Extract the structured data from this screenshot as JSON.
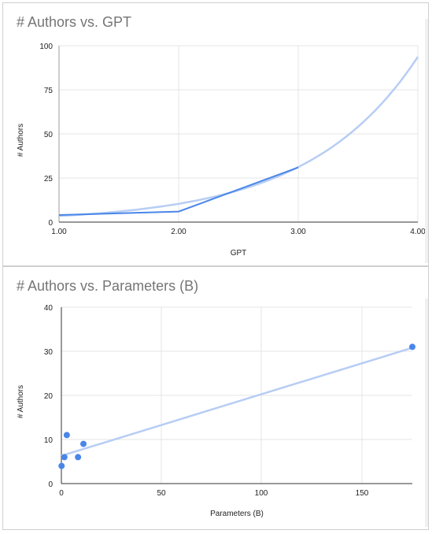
{
  "chart_data": [
    {
      "type": "line",
      "title": "# Authors vs. GPT",
      "xlabel": "GPT",
      "ylabel": "# Authors",
      "xlim": [
        1,
        4
      ],
      "ylim": [
        0,
        100
      ],
      "x_ticks": [
        "1.00",
        "2.00",
        "3.00",
        "4.00"
      ],
      "y_ticks": [
        "0",
        "25",
        "50",
        "75",
        "100"
      ],
      "grid": true,
      "legend": "none",
      "series": [
        {
          "x": [
            1,
            2,
            3
          ],
          "values": [
            4,
            6,
            31
          ],
          "color": "#4a86e8"
        }
      ],
      "trendline": {
        "kind": "exponential",
        "a": 1.15,
        "b": 1.1,
        "color": "#b7cdf4"
      }
    },
    {
      "type": "scatter",
      "title": "# Authors vs. Parameters (B)",
      "xlabel": "Parameters (B)",
      "ylabel": "# Authors",
      "xlim": [
        0,
        175
      ],
      "ylim": [
        0,
        40
      ],
      "x_ticks": [
        "0",
        "50",
        "100",
        "150"
      ],
      "y_ticks": [
        "0",
        "10",
        "20",
        "30",
        "40"
      ],
      "grid": true,
      "legend": "none",
      "series": [
        {
          "x": [
            0.1,
            1.5,
            2.7,
            8.3,
            11,
            175
          ],
          "values": [
            4,
            6,
            11,
            6,
            9,
            31
          ],
          "color": "#4a86e8"
        }
      ],
      "trendline": {
        "kind": "linear",
        "x": [
          0,
          175
        ],
        "values": [
          6.3,
          30.8
        ],
        "color": "#b7cdf4"
      }
    }
  ]
}
